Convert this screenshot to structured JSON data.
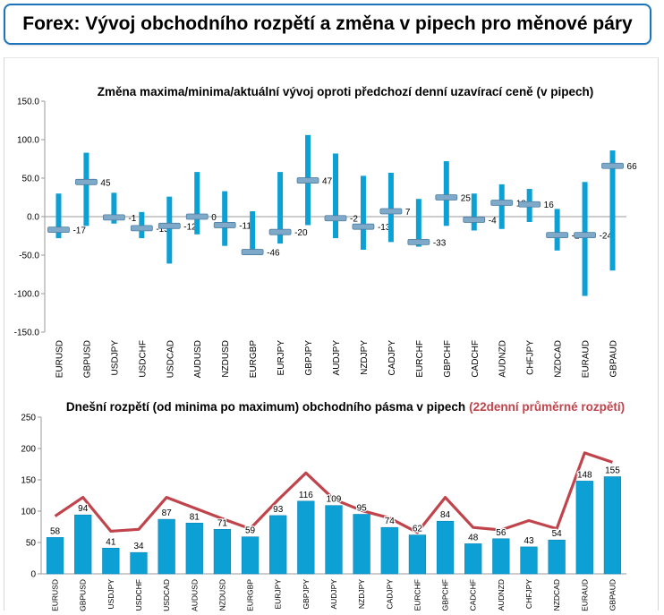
{
  "page_title": "Forex: Vývoj obchodního rozpětí a změna v pipech pro měnové páry",
  "colors": {
    "accent": "#1c75bc",
    "bar": "#0da0d5",
    "bar_dark": "#0b86b8",
    "line": "#c0444b",
    "marker": "#7fa9c9"
  },
  "chart_data": [
    {
      "type": "bar",
      "title": "Změna maxima/minima/aktuální vývoj oproti předchozí denní uzavírací ceně (v pipech)",
      "categories": [
        "EURUSD",
        "GBPUSD",
        "USDJPY",
        "USDCHF",
        "USDCAD",
        "AUDUSD",
        "NZDUSD",
        "EURGBP",
        "EURJPY",
        "GBPJPY",
        "AUDJPY",
        "NZDJPY",
        "CADJPY",
        "EURCHF",
        "GBPCHF",
        "CADCHF",
        "AUDNZD",
        "CHFJPY",
        "NZDCAD",
        "EURAUD",
        "GBPAUD"
      ],
      "high": [
        30,
        83,
        31,
        6,
        26,
        58,
        33,
        7,
        58,
        106,
        82,
        53,
        57,
        23,
        72,
        30,
        42,
        36,
        10,
        45,
        86
      ],
      "low": [
        -28,
        -12,
        -9,
        -28,
        -61,
        -23,
        -38,
        -50,
        -35,
        -11,
        -28,
        -43,
        -33,
        -39,
        -12,
        -18,
        -16,
        -7,
        -44,
        -103,
        -70
      ],
      "current": [
        -17,
        45,
        -1,
        -15,
        -12,
        0,
        -11,
        -46,
        -20,
        47,
        -2,
        -13,
        7,
        -33,
        25,
        -4,
        18,
        16,
        -24,
        -24,
        66
      ],
      "current_labels": [
        "-17",
        "45",
        "-1",
        "-15",
        "-12",
        "0",
        "-11",
        "-46",
        "-20",
        "47",
        "-2",
        "-13",
        "7",
        "-33",
        "25",
        "-4",
        "18",
        "16",
        "-24",
        "-24",
        "66"
      ],
      "ylim": [
        -150,
        150
      ],
      "yticks": [
        "150.0",
        "100.0",
        "50.0",
        "0.0",
        "-50.0",
        "-100.0",
        "-150.0"
      ],
      "ytick_values": [
        150,
        100,
        50,
        0,
        -50,
        -100,
        -150
      ],
      "grid": false
    },
    {
      "type": "bar",
      "title": "Dnešní rozpětí (od minima po maximum) obchodního pásma v pipech",
      "title_highlight": "(22denní průměrné rozpětí)",
      "categories": [
        "EURUSD",
        "GBPUSD",
        "USDJPY",
        "USDCHF",
        "USDCAD",
        "AUDUSD",
        "NZDUSD",
        "EURGBP",
        "EURJPY",
        "GBPJPY",
        "AUDJPY",
        "NZDJPY",
        "CADJPY",
        "EURCHF",
        "GBPCHF",
        "CADCHF",
        "AUDNZD",
        "CHFJPY",
        "NZDCAD",
        "EURAUD",
        "GBPAUD"
      ],
      "values": [
        58,
        94,
        41,
        34,
        87,
        81,
        71,
        59,
        93,
        116,
        109,
        95,
        74,
        62,
        84,
        48,
        56,
        43,
        54,
        148,
        155
      ],
      "value_labels": [
        "58",
        "94",
        "41",
        "34",
        "87",
        "81",
        "71",
        "59",
        "93",
        "116",
        "109",
        "95",
        "74",
        "62",
        "84",
        "48",
        "56",
        "43",
        "54",
        "148",
        "155"
      ],
      "average_22d": [
        92,
        122,
        68,
        71,
        122,
        105,
        88,
        72,
        118,
        161,
        119,
        101,
        89,
        66,
        122,
        74,
        70,
        85,
        72,
        193,
        178
      ],
      "ylim": [
        0,
        250
      ],
      "yticks": [
        "250",
        "200",
        "150",
        "100",
        "50",
        "0"
      ],
      "ytick_values": [
        250,
        200,
        150,
        100,
        50,
        0
      ],
      "grid": false
    }
  ]
}
